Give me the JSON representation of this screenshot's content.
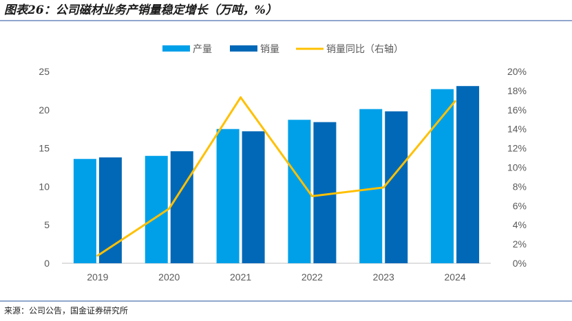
{
  "title": "图表26：公司磁材业务产销量稳定增长（万吨，%）",
  "source": "来源：公司公告，国金证券研究所",
  "colors": {
    "production": "#00A0E9",
    "sales": "#0068B7",
    "yoy": "#FFC000"
  },
  "chart_data": {
    "type": "bar+line",
    "categories": [
      "2019",
      "2020",
      "2021",
      "2022",
      "2023",
      "2024"
    ],
    "series": [
      {
        "name": "产量",
        "type": "bar",
        "axis": "left",
        "values": [
          13.6,
          14.0,
          17.5,
          18.7,
          20.1,
          22.7
        ]
      },
      {
        "name": "销量",
        "type": "bar",
        "axis": "left",
        "values": [
          13.8,
          14.6,
          17.2,
          18.4,
          19.8,
          23.1
        ]
      },
      {
        "name": "销量同比（右轴）",
        "type": "line",
        "axis": "right",
        "values": [
          0.8,
          5.7,
          17.3,
          7.0,
          7.9,
          16.9
        ]
      }
    ],
    "ylim_left": [
      0,
      25
    ],
    "yticks_left": [
      "0",
      "5",
      "10",
      "15",
      "20",
      "25"
    ],
    "ylim_right": [
      0,
      20
    ],
    "yticks_right": [
      "0%",
      "2%",
      "4%",
      "6%",
      "8%",
      "10%",
      "12%",
      "14%",
      "16%",
      "18%",
      "20%"
    ],
    "legend": "top",
    "grid": false
  }
}
